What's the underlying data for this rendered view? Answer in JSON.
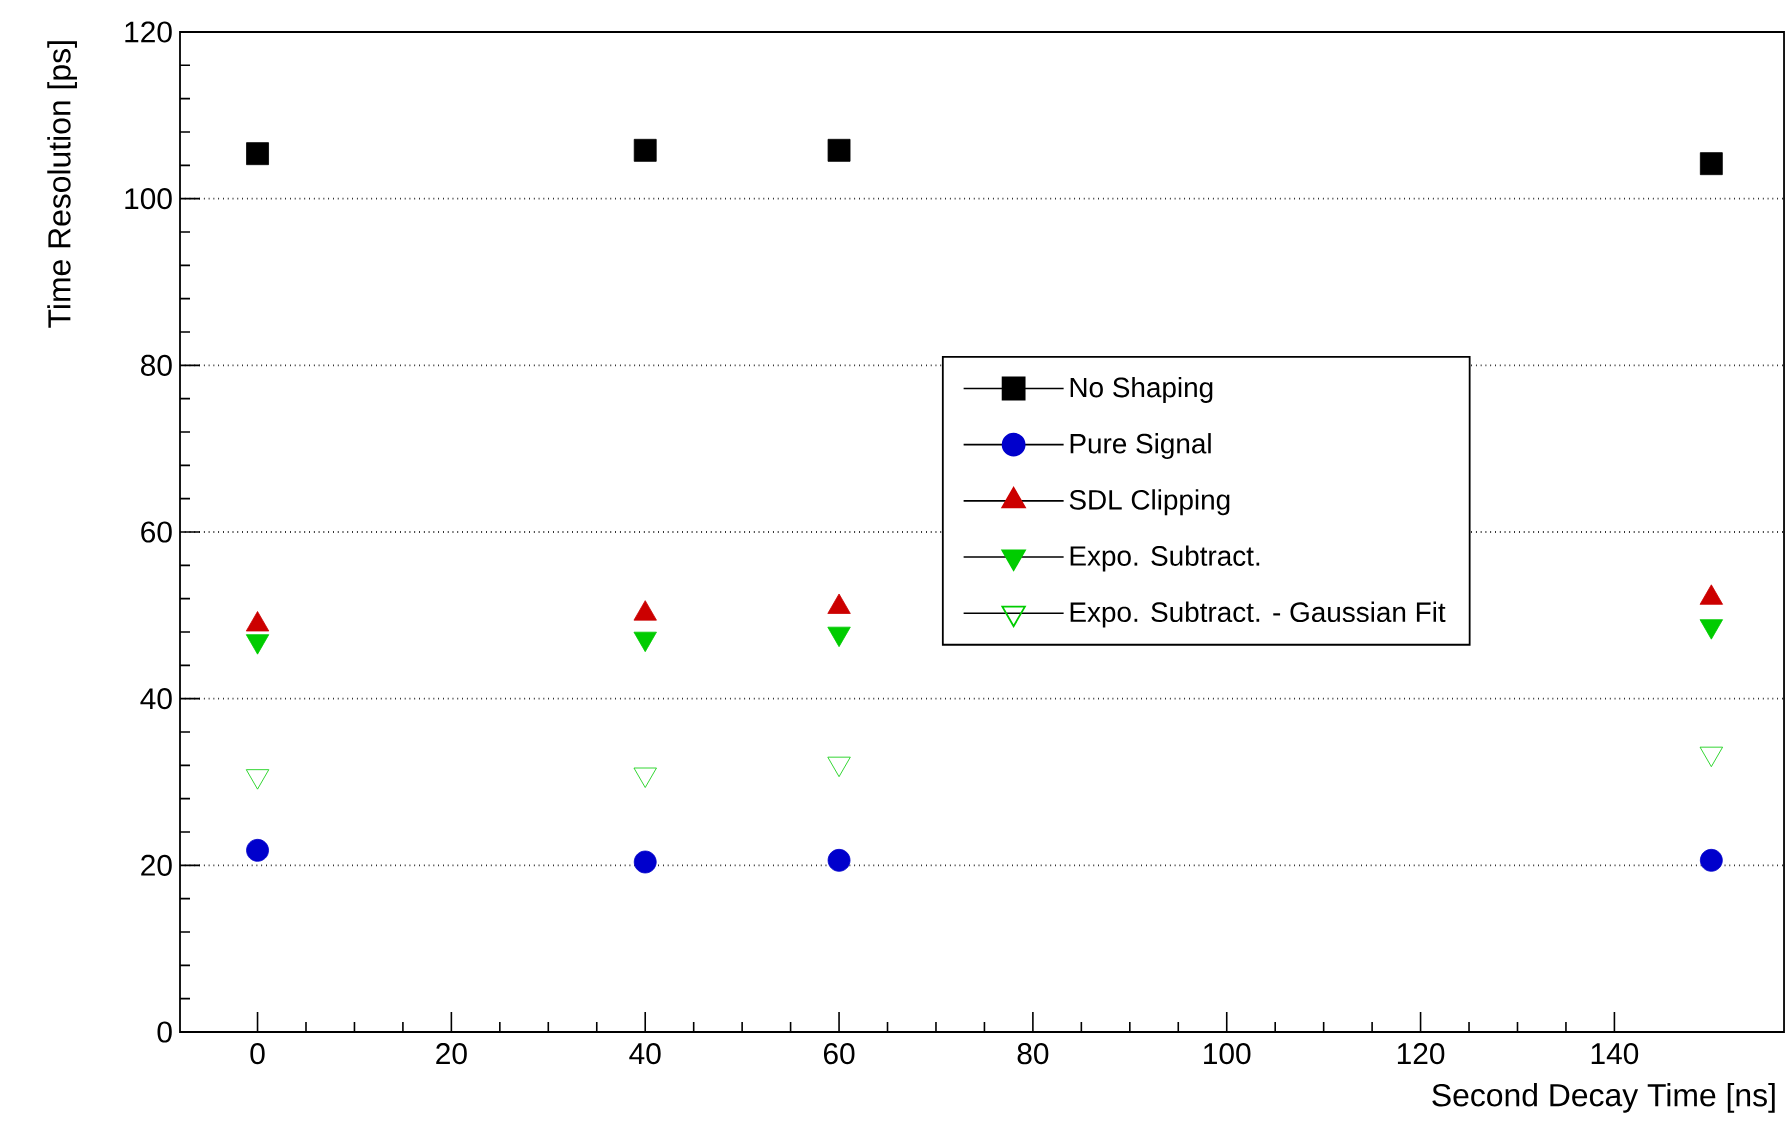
{
  "chart_data": {
    "type": "scatter",
    "xlabel": "Second Decay Time [ns]",
    "ylabel": "Time Resolution [ps]",
    "x": [
      0,
      40,
      60,
      150
    ],
    "series": [
      {
        "name": "No Shaping",
        "color": "#000000",
        "marker": "square",
        "values": [
          105.4,
          105.8,
          105.8,
          104.2
        ]
      },
      {
        "name": "Pure Signal",
        "color": "#0000cc",
        "marker": "circle",
        "values": [
          21.8,
          20.4,
          20.6,
          20.6
        ]
      },
      {
        "name": "SDL Clipping",
        "color": "#cc0000",
        "marker": "triangle",
        "values": [
          48.9,
          50.2,
          51.0,
          52.1
        ]
      },
      {
        "name": "Expo. Subtract.",
        "color": "#00cc00",
        "marker": "triangle-down",
        "values": [
          46.9,
          47.2,
          47.8,
          48.7
        ]
      },
      {
        "name": "Expo. Subtract. - Gaussian Fit",
        "color": "#00cc00",
        "marker": "triangle-down-open",
        "values": [
          30.7,
          30.9,
          32.2,
          33.4
        ]
      }
    ],
    "xlim": [
      -8,
      157.5
    ],
    "ylim": [
      0,
      120
    ],
    "xticks": [
      0,
      20,
      40,
      60,
      80,
      100,
      120,
      140
    ],
    "yticks": [
      0,
      20,
      40,
      60,
      80,
      100,
      120
    ],
    "grid": "y",
    "legend": "right"
  }
}
